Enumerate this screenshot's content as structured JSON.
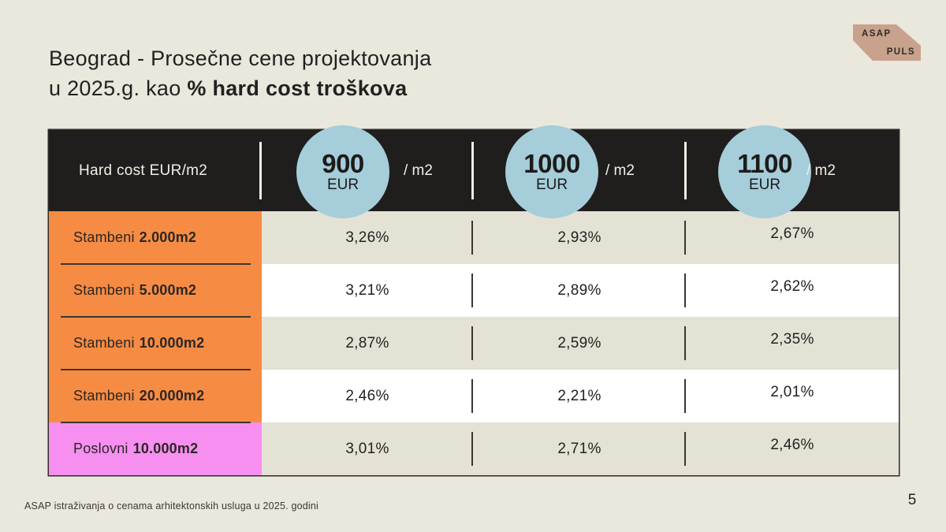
{
  "title": {
    "line1": "Beograd - Prosečne cene projektovanja",
    "line2_normal": "u 2025.g. kao ",
    "line2_bold": "% hard cost troškova"
  },
  "logo": {
    "top": "ASAP",
    "bottom": "PULS"
  },
  "table": {
    "header_label": "Hard cost EUR/m2",
    "columns": [
      {
        "price": "900",
        "currency": "EUR",
        "per": "/ m2"
      },
      {
        "price": "1000",
        "currency": "EUR",
        "per": "/ m2"
      },
      {
        "price": "1100",
        "currency": "EUR",
        "per": "/ m2"
      }
    ],
    "rows": [
      {
        "type": "Stambeni",
        "size": "2.000m2",
        "values": [
          "3,26%",
          "2,93%",
          "2,67%"
        ]
      },
      {
        "type": "Stambeni",
        "size": "5.000m2",
        "values": [
          "3,21%",
          "2,89%",
          "2,62%"
        ]
      },
      {
        "type": "Stambeni",
        "size": "10.000m2",
        "values": [
          "2,87%",
          "2,59%",
          "2,35%"
        ]
      },
      {
        "type": "Stambeni",
        "size": "20.000m2",
        "values": [
          "2,46%",
          "2,21%",
          "2,01%"
        ]
      },
      {
        "type": "Poslovni",
        "size": "10.000m2",
        "values": [
          "3,01%",
          "2,71%",
          "2,46%"
        ]
      }
    ]
  },
  "footer": {
    "source": "ASAP istraživanja o cenama arhitektonskih usluga u 2025. godini"
  },
  "page_number": "5",
  "colors": {
    "background": "#eae7dd",
    "header_bg": "#201e1d",
    "header_text": "#f2efe6",
    "circle_blue": "#a5cdda",
    "row_orange": "#f68b43",
    "row_pink": "#f78ff0",
    "row_beige": "#e4e1d5",
    "row_white": "#ffffff",
    "logo_tan": "#c8a28c",
    "text_dark": "#24221f"
  }
}
